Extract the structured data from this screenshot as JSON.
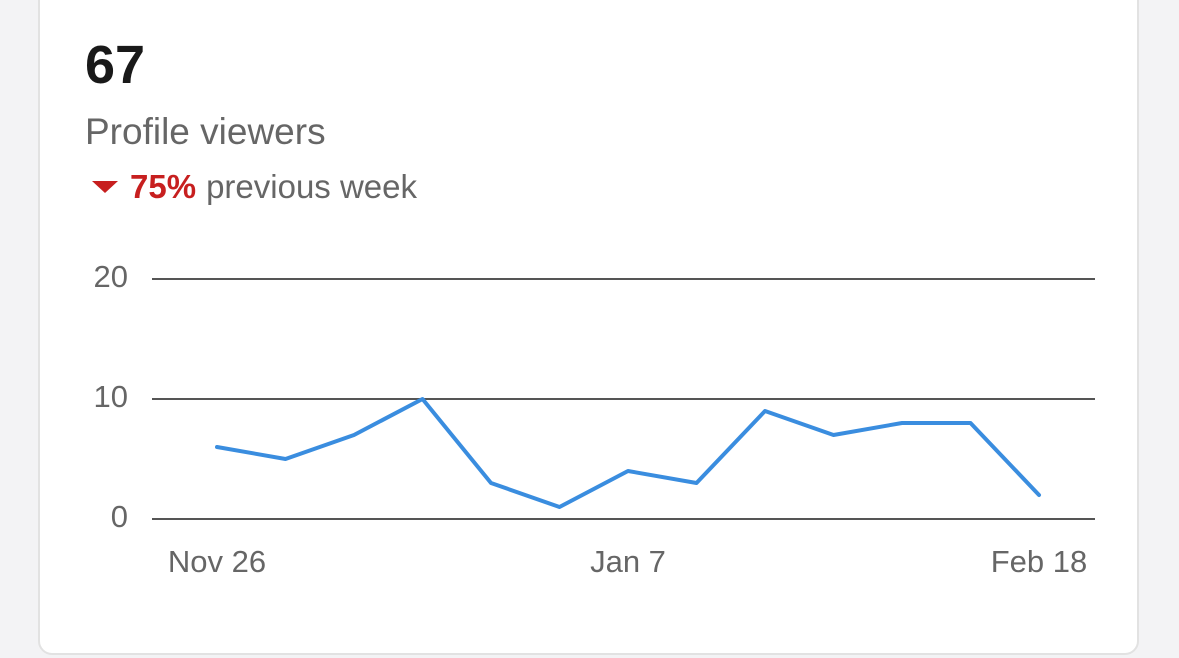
{
  "metric": {
    "value": "67",
    "label": "Profile viewers",
    "change": "75%",
    "change_text": "previous week"
  },
  "chart_data": {
    "type": "line",
    "categories": [
      "Nov 26",
      null,
      null,
      null,
      null,
      null,
      "Jan 7",
      null,
      null,
      null,
      null,
      null,
      "Feb 18"
    ],
    "values": [
      6,
      5,
      7,
      10,
      3,
      1,
      4,
      3,
      9,
      7,
      8,
      8,
      2
    ],
    "color": "#3a8ddf",
    "ylim": [
      0,
      20
    ],
    "yticks": [
      0,
      10,
      20
    ],
    "grid": true
  }
}
